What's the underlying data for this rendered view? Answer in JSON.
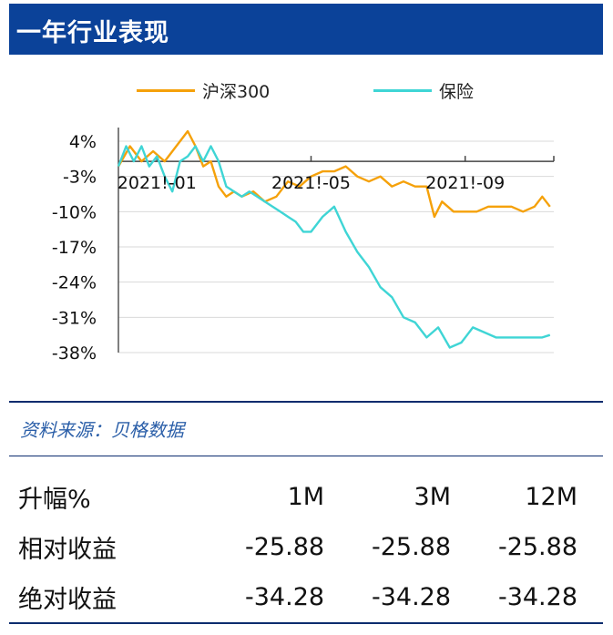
{
  "header": {
    "title": "一年行业表现"
  },
  "colors": {
    "header_bg": "#0b4299",
    "hs300": "#f5a10a",
    "insurance": "#3fd5d5"
  },
  "chart_data": {
    "type": "line",
    "ylim": [
      -38,
      7
    ],
    "yticks": [
      4,
      -3,
      -10,
      -17,
      -24,
      -31,
      -38
    ],
    "ytick_labels": [
      "4%",
      "-3%",
      "-10%",
      "-17%",
      "-24%",
      "-31%",
      "-38%"
    ],
    "xtick_labels": [
      "2021!-01",
      "2021!-05",
      "2021!-09"
    ],
    "xtick_positions": [
      0,
      4,
      8
    ],
    "xlim": [
      -1,
      10.3
    ],
    "grid": true,
    "legend_placement": "top",
    "series": [
      {
        "name": "沪深300",
        "color_key": "hs300",
        "x": [
          -1,
          -0.7,
          -0.4,
          -0.1,
          0.2,
          0.5,
          0.8,
          1.0,
          1.2,
          1.4,
          1.6,
          1.8,
          2.0,
          2.2,
          2.5,
          2.8,
          3.1,
          3.4,
          3.7,
          4.0,
          4.3,
          4.6,
          4.9,
          5.2,
          5.5,
          5.8,
          6.1,
          6.4,
          6.7,
          7.0,
          7.2,
          7.4,
          7.7,
          8.0,
          8.3,
          8.6,
          8.9,
          9.2,
          9.5,
          9.8,
          10.0,
          10.2
        ],
        "y": [
          -1,
          3,
          0,
          2,
          0,
          3,
          6,
          3,
          -1,
          0,
          -5,
          -7,
          -6,
          -7,
          -6,
          -8,
          -7,
          -4,
          -5,
          -3,
          -2,
          -2,
          -1,
          -3,
          -4,
          -3,
          -5,
          -4,
          -5,
          -5,
          -11,
          -8,
          -10,
          -10,
          -10,
          -9,
          -9,
          -9,
          -10,
          -9,
          -7,
          -9
        ]
      },
      {
        "name": "保险",
        "color_key": "insurance",
        "x": [
          -1,
          -0.8,
          -0.6,
          -0.4,
          -0.2,
          0.0,
          0.2,
          0.4,
          0.6,
          0.8,
          1.0,
          1.2,
          1.4,
          1.6,
          1.8,
          2.0,
          2.2,
          2.4,
          2.6,
          2.8,
          3.0,
          3.2,
          3.4,
          3.6,
          3.8,
          4.0,
          4.3,
          4.6,
          4.9,
          5.2,
          5.5,
          5.8,
          6.1,
          6.4,
          6.7,
          7.0,
          7.3,
          7.6,
          7.9,
          8.2,
          8.5,
          8.8,
          9.1,
          9.4,
          9.7,
          10.0,
          10.2
        ],
        "y": [
          -1,
          3,
          0,
          3,
          -1,
          1,
          -3,
          -6,
          0,
          1,
          3,
          0,
          3,
          0,
          -5,
          -6,
          -7,
          -6,
          -7,
          -8,
          -9,
          -10,
          -11,
          -12,
          -14,
          -14,
          -11,
          -9,
          -14,
          -18,
          -21,
          -25,
          -27,
          -31,
          -32,
          -35,
          -33,
          -37,
          -36,
          -33,
          -34,
          -35,
          -35,
          -35,
          -35,
          -35,
          -34.5
        ]
      }
    ]
  },
  "footer": {
    "source": "资料来源：贝格数据"
  },
  "stats": {
    "header": {
      "label": "升幅%",
      "c1": "1M",
      "c2": "3M",
      "c3": "12M"
    },
    "rows": [
      {
        "label": "相对收益",
        "c1": "-25.88",
        "c2": "-25.88",
        "c3": "-25.88"
      },
      {
        "label": "绝对收益",
        "c1": "-34.28",
        "c2": "-34.28",
        "c3": "-34.28"
      }
    ]
  }
}
